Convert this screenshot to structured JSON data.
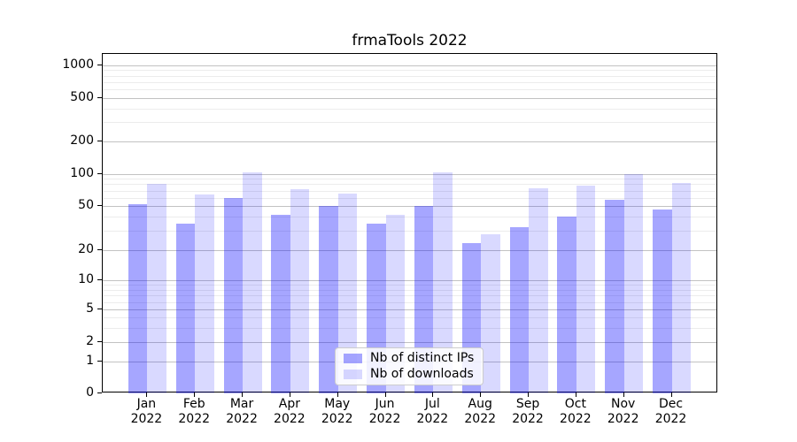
{
  "chart_data": {
    "type": "bar",
    "title": "frmaTools 2022",
    "categories": [
      "Jan",
      "Feb",
      "Mar",
      "Apr",
      "May",
      "Jun",
      "Jul",
      "Aug",
      "Sep",
      "Oct",
      "Nov",
      "Dec"
    ],
    "category_year": "2022",
    "series": [
      {
        "name": "Nb of distinct IPs",
        "color": "rgba(0,0,255,0.35)",
        "values": [
          52,
          35,
          60,
          42,
          50,
          35,
          50,
          23,
          32,
          40,
          57,
          47
        ]
      },
      {
        "name": "Nb of downloads",
        "color": "rgba(0,0,255,0.15)",
        "values": [
          81,
          64,
          104,
          72,
          65,
          42,
          103,
          28,
          74,
          78,
          100,
          83
        ]
      }
    ],
    "yaxis": {
      "scale": "symlog",
      "major_ticks": [
        0,
        1,
        2,
        5,
        10,
        20,
        50,
        100,
        200,
        500,
        1000
      ],
      "minor_gridlines": [
        3,
        4,
        6,
        7,
        8,
        9,
        30,
        40,
        60,
        70,
        80,
        90,
        300,
        400,
        600,
        700,
        800,
        900
      ]
    },
    "grid": true,
    "legend": {
      "position": "lower center"
    },
    "colors": {
      "major_grid": "#c2c2c2",
      "minor_grid": "#ececec",
      "spine": "#000000"
    }
  }
}
